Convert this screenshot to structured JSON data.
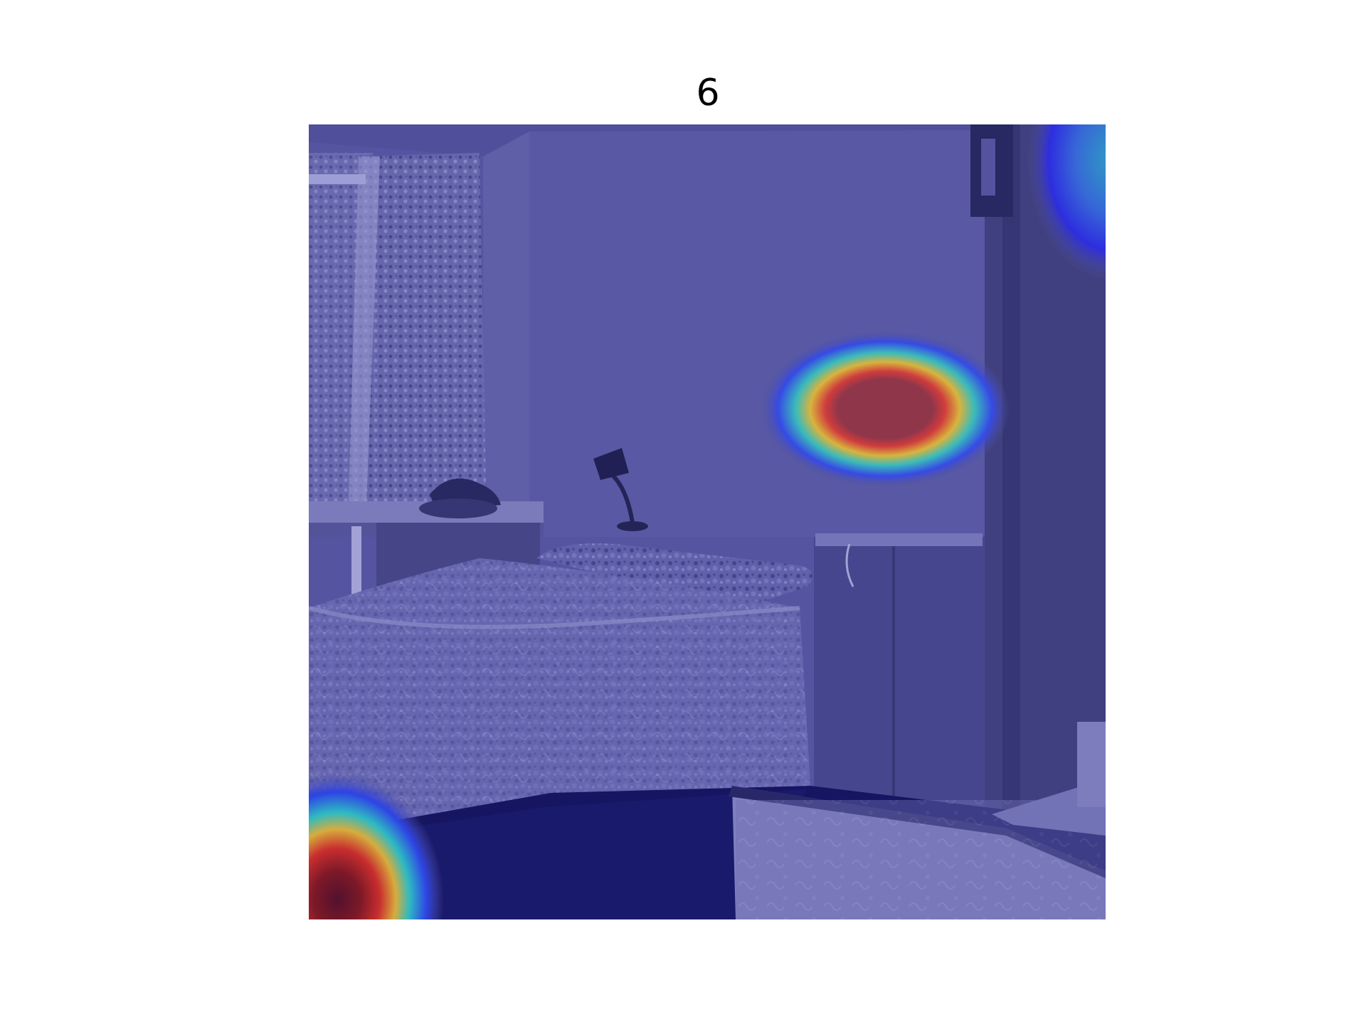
{
  "figure": {
    "title": "6"
  },
  "overlay": {
    "colormap": [
      "#00007f",
      "#0000ff",
      "#00ffff",
      "#ffff00",
      "#ff0000",
      "#7f0000"
    ],
    "base_tint": "#5a5aa0",
    "hotspots": [
      {
        "name": "wall-hotspot",
        "peak": "red"
      },
      {
        "name": "floor-corner-hotspot",
        "peak": "dark-red"
      },
      {
        "name": "top-right-edge-hotspot",
        "peak": "cyan"
      }
    ]
  }
}
